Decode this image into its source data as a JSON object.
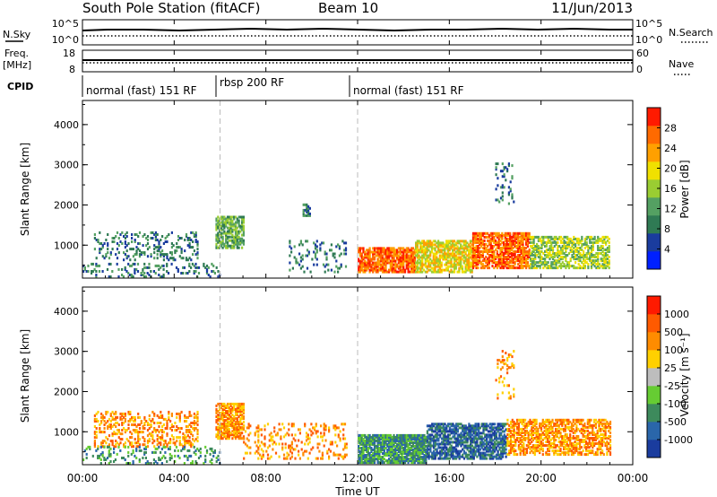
{
  "header": {
    "station": "South Pole Station (fitACF)",
    "beam": "Beam 10",
    "date": "11/Jun/2013"
  },
  "top_panels": {
    "nsky_label": "N.Sky",
    "nsky_ticks": [
      "10^5",
      "10^0"
    ],
    "nsearch_label": "N.Search",
    "nsearch_ticks": [
      "10^5",
      "10^0"
    ],
    "freq_label_1": "Freq.",
    "freq_label_2": "[MHz]",
    "freq_ticks": [
      "18",
      "8"
    ],
    "nave_label": "Nave",
    "nave_ticks": [
      "60",
      "0"
    ],
    "cpid_label": "CPID",
    "cpid_segments": [
      {
        "label": "normal (fast) 151 RF",
        "start_h": 0,
        "end_h": 6
      },
      {
        "label": "rbsp 200 RF",
        "start_h": 6,
        "end_h": 12
      },
      {
        "label": "normal (fast) 151 RF",
        "start_h": 12,
        "end_h": 24
      }
    ]
  },
  "colorbars": {
    "power": {
      "label": "Power [dB]",
      "ticks": [
        "28",
        "24",
        "20",
        "16",
        "12",
        "8",
        "4"
      ],
      "colors": [
        "#0020ff",
        "#1a3c9e",
        "#2f7a54",
        "#54a062",
        "#9acd32",
        "#f0e000",
        "#ffa000",
        "#ff6a00",
        "#ff1a00"
      ]
    },
    "velocity": {
      "label": "Velocity [m s⁻¹]",
      "ticks": [
        "1000",
        "500",
        "100",
        "25",
        "-25",
        "-100",
        "-500",
        "-1000"
      ],
      "colors": [
        "#1a3c9e",
        "#2a66aa",
        "#3d8a5c",
        "#66cc33",
        "#bdbdbd",
        "#ffd000",
        "#ff8c00",
        "#ff5a00",
        "#ff1a00"
      ]
    }
  },
  "chart_data": [
    {
      "type": "heatmap",
      "name": "power",
      "xlabel": "",
      "ylabel": "Slant Range [km]",
      "xlim_h": [
        0,
        24
      ],
      "ylim_km": [
        180,
        4600
      ],
      "yticks": [
        "4000",
        "3000",
        "2000",
        "1000"
      ],
      "regions": [
        {
          "t0": 0.5,
          "t1": 5.0,
          "r0": 600,
          "r1": 1300,
          "level": 8,
          "density": 0.22
        },
        {
          "t0": 0.0,
          "t1": 6.0,
          "r0": 180,
          "r1": 500,
          "level": 8,
          "density": 0.18
        },
        {
          "t0": 5.8,
          "t1": 7.0,
          "r0": 900,
          "r1": 1700,
          "level": 14,
          "density": 0.75
        },
        {
          "t0": 9.6,
          "t1": 9.9,
          "r0": 1700,
          "r1": 2000,
          "level": 10,
          "density": 0.6
        },
        {
          "t0": 9.0,
          "t1": 11.5,
          "r0": 300,
          "r1": 1100,
          "level": 8,
          "density": 0.15
        },
        {
          "t0": 12.0,
          "t1": 14.5,
          "r0": 300,
          "r1": 900,
          "level": 26,
          "density": 0.8
        },
        {
          "t0": 14.5,
          "t1": 17.0,
          "r0": 300,
          "r1": 1100,
          "level": 18,
          "density": 0.7
        },
        {
          "t0": 17.0,
          "t1": 19.5,
          "r0": 400,
          "r1": 1300,
          "level": 28,
          "density": 0.75
        },
        {
          "t0": 19.5,
          "t1": 23.0,
          "r0": 400,
          "r1": 1200,
          "level": 16,
          "density": 0.6
        },
        {
          "t0": 18.0,
          "t1": 18.8,
          "r0": 2000,
          "r1": 3000,
          "level": 8,
          "density": 0.15
        }
      ]
    },
    {
      "type": "heatmap",
      "name": "velocity",
      "xlabel": "Time UT",
      "ylabel": "Slant Range [km]",
      "xlim_h": [
        0,
        24
      ],
      "ylim_km": [
        180,
        4600
      ],
      "yticks": [
        "4000",
        "3000",
        "2000",
        "1000"
      ],
      "xticks": [
        "00:00",
        "04:00",
        "08:00",
        "12:00",
        "16:00",
        "20:00",
        "00:00"
      ],
      "regions": [
        {
          "t0": 0.5,
          "t1": 5.0,
          "r0": 600,
          "r1": 1500,
          "level": -100,
          "density": 0.3
        },
        {
          "t0": 0.0,
          "t1": 6.0,
          "r0": 180,
          "r1": 600,
          "level": 100,
          "density": 0.2
        },
        {
          "t0": 5.8,
          "t1": 7.0,
          "r0": 800,
          "r1": 1700,
          "level": -200,
          "density": 0.75
        },
        {
          "t0": 7.0,
          "t1": 11.5,
          "r0": 300,
          "r1": 1200,
          "level": -100,
          "density": 0.2
        },
        {
          "t0": 12.0,
          "t1": 15.0,
          "r0": 200,
          "r1": 900,
          "level": 100,
          "density": 0.85
        },
        {
          "t0": 15.0,
          "t1": 18.5,
          "r0": 300,
          "r1": 1200,
          "level": 500,
          "density": 0.7
        },
        {
          "t0": 18.5,
          "t1": 23.0,
          "r0": 400,
          "r1": 1300,
          "level": -300,
          "density": 0.6
        },
        {
          "t0": 18.0,
          "t1": 18.8,
          "r0": 1800,
          "r1": 3000,
          "level": -100,
          "density": 0.15
        }
      ]
    }
  ]
}
